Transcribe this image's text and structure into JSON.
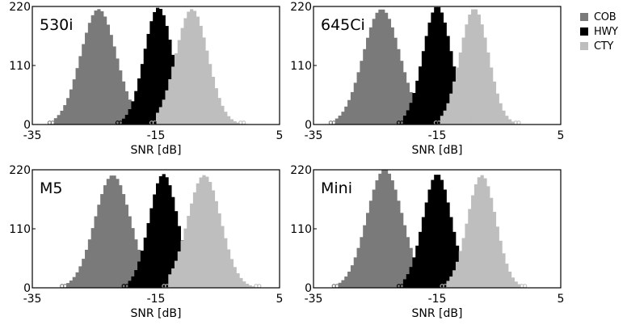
{
  "legend": {
    "items": [
      {
        "label": "COB",
        "color": "#7a7a7a"
      },
      {
        "label": "HWY",
        "color": "#000000"
      },
      {
        "label": "CTY",
        "color": "#bebebe"
      }
    ]
  },
  "chart_data": [
    {
      "type": "bar",
      "title": "530i",
      "xlabel": "SNR [dB]",
      "ylabel": "",
      "xlim": [
        -35,
        5
      ],
      "ylim": [
        0,
        220
      ],
      "xticks": [
        "-35",
        "-15",
        "5"
      ],
      "yticks": [
        "0",
        "110",
        "220"
      ],
      "legend_position": "outside-right",
      "grid": false,
      "series": [
        {
          "name": "COB",
          "color": "#7a7a7a",
          "center": -24.3,
          "peak": 215,
          "min": -31.5,
          "max": -16.5
        },
        {
          "name": "HWY",
          "color": "#000000",
          "center": -14.6,
          "peak": 218,
          "min": -20.5,
          "max": -8.5
        },
        {
          "name": "CTY",
          "color": "#bebebe",
          "center": -9.2,
          "peak": 215,
          "min": -15.0,
          "max": -1.5
        }
      ]
    },
    {
      "type": "bar",
      "title": "645Ci",
      "xlabel": "SNR [dB]",
      "ylabel": "",
      "xlim": [
        -35,
        5
      ],
      "ylim": [
        0,
        220
      ],
      "xticks": [
        "-35",
        "-15",
        "5"
      ],
      "yticks": [
        "0",
        "110",
        "220"
      ],
      "legend_position": "outside-right",
      "grid": false,
      "series": [
        {
          "name": "COB",
          "color": "#7a7a7a",
          "center": -24.0,
          "peak": 215,
          "min": -31.5,
          "max": -16.0
        },
        {
          "name": "HWY",
          "color": "#000000",
          "center": -15.0,
          "peak": 220,
          "min": -20.5,
          "max": -8.5
        },
        {
          "name": "CTY",
          "color": "#bebebe",
          "center": -9.0,
          "peak": 216,
          "min": -14.5,
          "max": -2.5
        }
      ]
    },
    {
      "type": "bar",
      "title": "M5",
      "xlabel": "SNR [dB]",
      "ylabel": "",
      "xlim": [
        -35,
        5
      ],
      "ylim": [
        0,
        220
      ],
      "xticks": [
        "-35",
        "-15",
        "5"
      ],
      "yticks": [
        "0",
        "110",
        "220"
      ],
      "legend_position": "outside-right",
      "grid": false,
      "series": [
        {
          "name": "COB",
          "color": "#7a7a7a",
          "center": -22.0,
          "peak": 210,
          "min": -29.5,
          "max": -14.5
        },
        {
          "name": "HWY",
          "color": "#000000",
          "center": -13.8,
          "peak": 212,
          "min": -19.5,
          "max": -7.5
        },
        {
          "name": "CTY",
          "color": "#bebebe",
          "center": -7.2,
          "peak": 210,
          "min": -13.0,
          "max": 1.0
        }
      ]
    },
    {
      "type": "bar",
      "title": "Mini",
      "xlabel": "SNR [dB]",
      "ylabel": "",
      "xlim": [
        -35,
        5
      ],
      "ylim": [
        0,
        220
      ],
      "xticks": [
        "-35",
        "-15",
        "5"
      ],
      "yticks": [
        "0",
        "110",
        "220"
      ],
      "legend_position": "outside-right",
      "grid": false,
      "series": [
        {
          "name": "COB",
          "color": "#7a7a7a",
          "center": -23.5,
          "peak": 220,
          "min": -31.0,
          "max": -16.0
        },
        {
          "name": "HWY",
          "color": "#000000",
          "center": -15.0,
          "peak": 212,
          "min": -20.5,
          "max": -8.5
        },
        {
          "name": "CTY",
          "color": "#bebebe",
          "center": -7.8,
          "peak": 210,
          "min": -13.5,
          "max": -1.5
        }
      ]
    }
  ]
}
